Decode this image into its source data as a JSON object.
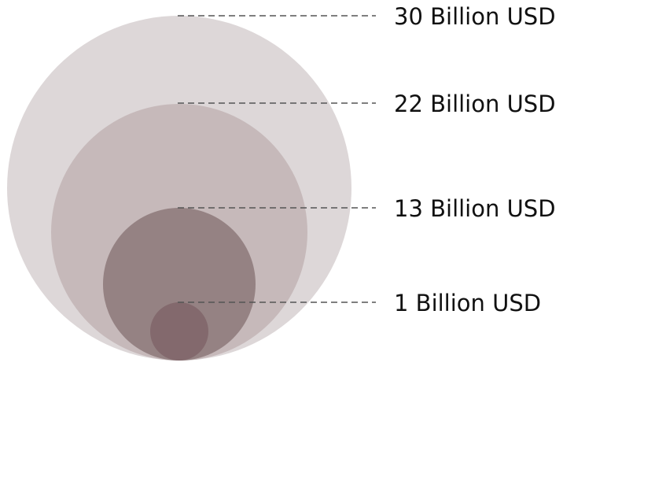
{
  "legend": {
    "items": [
      {
        "label": "30 Billion USD",
        "value": 30,
        "color": "#ddd7d8"
      },
      {
        "label": "22 Billion USD",
        "value": 22,
        "color": "#c6b9ba"
      },
      {
        "label": "13 Billion USD",
        "value": 13,
        "color": "#958283"
      },
      {
        "label": "1 Billion USD",
        "value": 1,
        "color": "#83696d"
      }
    ]
  }
}
